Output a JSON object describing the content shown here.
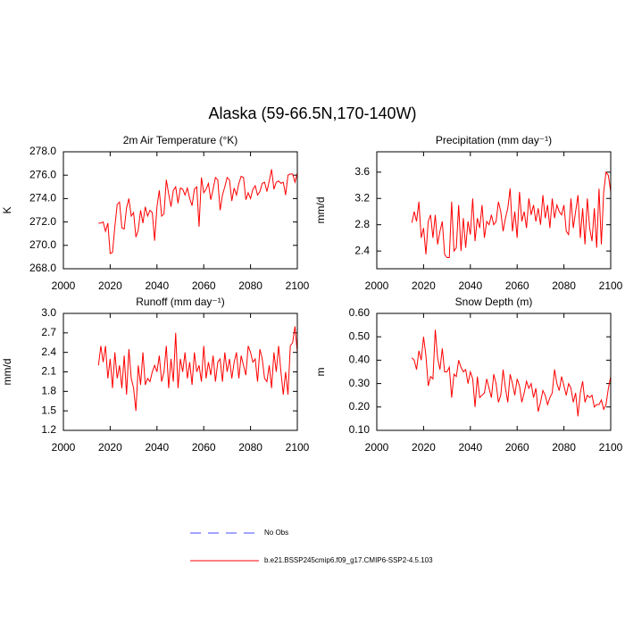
{
  "title": "Alaska (59-66.5N,170-140W)",
  "legend": {
    "entries": [
      {
        "name": "No Obs",
        "color": "#4a4aff",
        "dash": true
      },
      {
        "name": "b.e21.BSSP245cmip6.f09_g17.CMIP6-SSP2-4.5.103",
        "color": "#ff0000",
        "dash": false
      }
    ]
  },
  "chart_data": [
    {
      "type": "line",
      "title": "2m Air Temperature (°K)",
      "y_label": "K",
      "x": [
        2015,
        2016,
        2017,
        2018,
        2019,
        2020,
        2021,
        2022,
        2023,
        2024,
        2025,
        2026,
        2027,
        2028,
        2029,
        2030,
        2031,
        2032,
        2033,
        2034,
        2035,
        2036,
        2037,
        2038,
        2039,
        2040,
        2041,
        2042,
        2043,
        2044,
        2045,
        2046,
        2047,
        2048,
        2049,
        2050,
        2051,
        2052,
        2053,
        2054,
        2055,
        2056,
        2057,
        2058,
        2059,
        2060,
        2061,
        2062,
        2063,
        2064,
        2065,
        2066,
        2067,
        2068,
        2069,
        2070,
        2071,
        2072,
        2073,
        2074,
        2075,
        2076,
        2077,
        2078,
        2079,
        2080,
        2081,
        2082,
        2083,
        2084,
        2085,
        2086,
        2087,
        2088,
        2089,
        2090,
        2091,
        2092,
        2093,
        2094,
        2095,
        2096,
        2097,
        2098,
        2099,
        2100
      ],
      "series": [
        {
          "color": "#ff0000",
          "values": [
            271.9,
            271.9,
            272.0,
            271.2,
            271.9,
            269.3,
            269.4,
            271.6,
            273.5,
            273.7,
            271.5,
            271.4,
            273.2,
            274.0,
            272.5,
            272.8,
            270.7,
            271.3,
            273.0,
            271.9,
            273.3,
            272.5,
            273.0,
            272.8,
            270.4,
            273.3,
            274.7,
            272.5,
            272.7,
            275.6,
            274.4,
            273.3,
            274.7,
            275.0,
            273.6,
            274.9,
            274.8,
            274.3,
            274.9,
            274.0,
            273.4,
            274.8,
            275.0,
            271.6,
            275.8,
            274.5,
            274.8,
            275.3,
            273.9,
            274.8,
            275.8,
            275.6,
            273.0,
            274.3,
            275.0,
            275.8,
            275.6,
            273.8,
            274.9,
            274.3,
            275.3,
            275.9,
            275.8,
            273.9,
            274.5,
            274.0,
            274.8,
            275.1,
            274.3,
            274.6,
            275.3,
            275.4,
            274.6,
            275.5,
            276.5,
            274.8,
            275.4,
            275.5,
            275.3,
            275.4,
            274.3,
            276.0,
            276.1,
            276.1,
            275.4,
            276.2
          ]
        }
      ],
      "xlim": [
        2000,
        2100
      ],
      "xticks": [
        2000,
        2020,
        2040,
        2060,
        2080,
        2100
      ],
      "ylim": [
        268,
        278
      ],
      "yticks": [
        {
          "value": 268,
          "label": "268.0"
        },
        {
          "value": 270,
          "label": "270.0"
        },
        {
          "value": 272,
          "label": "272.0"
        },
        {
          "value": 274,
          "label": "274.0"
        },
        {
          "value": 276,
          "label": "276.0"
        },
        {
          "value": 278,
          "label": "278.0"
        }
      ]
    },
    {
      "type": "line",
      "title": "Precipitation (mm day⁻¹)",
      "y_label": "mm/d",
      "x": [
        2015,
        2016,
        2017,
        2018,
        2019,
        2020,
        2021,
        2022,
        2023,
        2024,
        2025,
        2026,
        2027,
        2028,
        2029,
        2030,
        2031,
        2032,
        2033,
        2034,
        2035,
        2036,
        2037,
        2038,
        2039,
        2040,
        2041,
        2042,
        2043,
        2044,
        2045,
        2046,
        2047,
        2048,
        2049,
        2050,
        2051,
        2052,
        2053,
        2054,
        2055,
        2056,
        2057,
        2058,
        2059,
        2060,
        2061,
        2062,
        2063,
        2064,
        2065,
        2066,
        2067,
        2068,
        2069,
        2070,
        2071,
        2072,
        2073,
        2074,
        2075,
        2076,
        2077,
        2078,
        2079,
        2080,
        2081,
        2082,
        2083,
        2084,
        2085,
        2086,
        2087,
        2088,
        2089,
        2090,
        2091,
        2092,
        2093,
        2094,
        2095,
        2096,
        2097,
        2098,
        2099,
        2100
      ],
      "series": [
        {
          "color": "#ff0000",
          "values": [
            2.83,
            3.0,
            2.85,
            3.15,
            2.6,
            2.75,
            2.35,
            2.85,
            2.95,
            2.6,
            2.95,
            2.5,
            2.7,
            2.85,
            2.35,
            2.3,
            2.3,
            3.15,
            2.4,
            2.45,
            3.1,
            2.4,
            2.9,
            2.45,
            2.85,
            2.65,
            3.2,
            2.55,
            2.9,
            2.75,
            3.1,
            2.6,
            2.85,
            2.8,
            2.95,
            2.8,
            2.85,
            3.15,
            3.0,
            2.7,
            2.9,
            3.05,
            3.35,
            2.7,
            3.0,
            2.6,
            3.3,
            2.85,
            3.0,
            2.75,
            3.2,
            2.95,
            3.1,
            2.85,
            3.05,
            2.8,
            3.25,
            2.9,
            3.1,
            2.75,
            3.2,
            2.9,
            3.1,
            3.0,
            2.95,
            3.1,
            2.7,
            2.65,
            3.2,
            2.75,
            3.0,
            3.25,
            2.6,
            3.05,
            2.5,
            3.2,
            2.75,
            2.55,
            3.05,
            2.45,
            3.35,
            2.5,
            3.3,
            3.6,
            3.55,
            3.3
          ]
        }
      ],
      "xlim": [
        2000,
        2100
      ],
      "xticks": [
        2000,
        2020,
        2040,
        2060,
        2080,
        2100
      ],
      "ylim": [
        2.13,
        3.91
      ],
      "yticks": [
        2.4,
        2.8,
        3.2,
        3.6
      ]
    },
    {
      "type": "line",
      "title": "Runoff (mm day⁻¹)",
      "y_label": "mm/d",
      "x": [
        2015,
        2016,
        2017,
        2018,
        2019,
        2020,
        2021,
        2022,
        2023,
        2024,
        2025,
        2026,
        2027,
        2028,
        2029,
        2030,
        2031,
        2032,
        2033,
        2034,
        2035,
        2036,
        2037,
        2038,
        2039,
        2040,
        2041,
        2042,
        2043,
        2044,
        2045,
        2046,
        2047,
        2048,
        2049,
        2050,
        2051,
        2052,
        2053,
        2054,
        2055,
        2056,
        2057,
        2058,
        2059,
        2060,
        2061,
        2062,
        2063,
        2064,
        2065,
        2066,
        2067,
        2068,
        2069,
        2070,
        2071,
        2072,
        2073,
        2074,
        2075,
        2076,
        2077,
        2078,
        2079,
        2080,
        2081,
        2082,
        2083,
        2084,
        2085,
        2086,
        2087,
        2088,
        2089,
        2090,
        2091,
        2092,
        2093,
        2094,
        2095,
        2096,
        2097,
        2098,
        2099,
        2100
      ],
      "series": [
        {
          "color": "#ff0000",
          "values": [
            2.2,
            2.5,
            2.25,
            2.5,
            2.0,
            2.3,
            1.85,
            2.4,
            2.0,
            2.2,
            1.85,
            2.35,
            1.75,
            2.45,
            2.0,
            1.85,
            1.5,
            2.2,
            1.9,
            2.4,
            1.9,
            2.0,
            1.95,
            2.1,
            2.2,
            2.1,
            2.35,
            1.95,
            2.1,
            2.5,
            1.85,
            2.3,
            1.95,
            2.7,
            1.85,
            2.3,
            2.1,
            2.4,
            2.0,
            2.25,
            1.9,
            2.4,
            2.1,
            2.2,
            1.95,
            2.5,
            2.0,
            2.25,
            2.05,
            2.35,
            1.95,
            2.25,
            2.3,
            1.95,
            2.4,
            2.1,
            2.3,
            2.0,
            2.25,
            2.4,
            2.0,
            2.35,
            2.2,
            2.05,
            2.5,
            2.4,
            2.25,
            2.3,
            1.95,
            2.45,
            2.3,
            2.0,
            1.95,
            2.2,
            1.85,
            2.4,
            2.1,
            2.5,
            2.1,
            1.75,
            2.1,
            1.75,
            2.5,
            2.55,
            2.8,
            2.4
          ]
        }
      ],
      "xlim": [
        2000,
        2100
      ],
      "xticks": [
        2000,
        2020,
        2040,
        2060,
        2080,
        2100
      ],
      "ylim": [
        1.2,
        3.0
      ],
      "yticks": [
        1.2,
        1.5,
        1.8,
        2.1,
        2.4,
        2.7,
        {
          "value": 3.0,
          "label": "3.0"
        }
      ]
    },
    {
      "type": "line",
      "title": "Snow Depth (m)",
      "y_label": "m",
      "x": [
        2015,
        2016,
        2017,
        2018,
        2019,
        2020,
        2021,
        2022,
        2023,
        2024,
        2025,
        2026,
        2027,
        2028,
        2029,
        2030,
        2031,
        2032,
        2033,
        2034,
        2035,
        2036,
        2037,
        2038,
        2039,
        2040,
        2041,
        2042,
        2043,
        2044,
        2045,
        2046,
        2047,
        2048,
        2049,
        2050,
        2051,
        2052,
        2053,
        2054,
        2055,
        2056,
        2057,
        2058,
        2059,
        2060,
        2061,
        2062,
        2063,
        2064,
        2065,
        2066,
        2067,
        2068,
        2069,
        2070,
        2071,
        2072,
        2073,
        2074,
        2075,
        2076,
        2077,
        2078,
        2079,
        2080,
        2081,
        2082,
        2083,
        2084,
        2085,
        2086,
        2087,
        2088,
        2089,
        2090,
        2091,
        2092,
        2093,
        2094,
        2095,
        2096,
        2097,
        2098,
        2099,
        2100
      ],
      "series": [
        {
          "color": "#ff0000",
          "values": [
            0.41,
            0.4,
            0.36,
            0.44,
            0.4,
            0.5,
            0.42,
            0.29,
            0.33,
            0.32,
            0.53,
            0.41,
            0.36,
            0.45,
            0.35,
            0.35,
            0.37,
            0.24,
            0.34,
            0.33,
            0.4,
            0.37,
            0.35,
            0.36,
            0.3,
            0.35,
            0.32,
            0.2,
            0.33,
            0.24,
            0.25,
            0.26,
            0.32,
            0.28,
            0.24,
            0.34,
            0.3,
            0.22,
            0.25,
            0.36,
            0.28,
            0.22,
            0.34,
            0.3,
            0.25,
            0.32,
            0.29,
            0.22,
            0.26,
            0.31,
            0.28,
            0.3,
            0.24,
            0.28,
            0.18,
            0.22,
            0.27,
            0.25,
            0.21,
            0.24,
            0.26,
            0.36,
            0.3,
            0.27,
            0.33,
            0.29,
            0.25,
            0.3,
            0.28,
            0.22,
            0.26,
            0.16,
            0.26,
            0.31,
            0.22,
            0.25,
            0.24,
            0.25,
            0.2,
            0.21,
            0.21,
            0.23,
            0.19,
            0.21,
            0.28,
            0.33
          ]
        }
      ],
      "xlim": [
        2000,
        2100
      ],
      "xticks": [
        2000,
        2020,
        2040,
        2060,
        2080,
        2100
      ],
      "ylim": [
        0.1,
        0.6
      ],
      "yticks": [
        {
          "value": 0.1,
          "label": "0.10"
        },
        {
          "value": 0.2,
          "label": "0.20"
        },
        {
          "value": 0.3,
          "label": "0.30"
        },
        {
          "value": 0.4,
          "label": "0.40"
        },
        {
          "value": 0.5,
          "label": "0.50"
        },
        {
          "value": 0.6,
          "label": "0.60"
        }
      ]
    }
  ]
}
